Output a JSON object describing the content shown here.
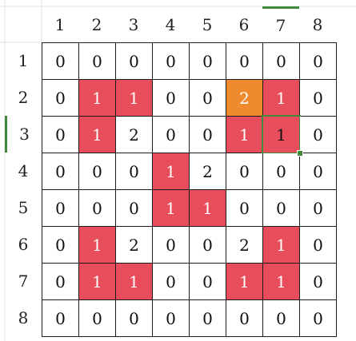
{
  "column_headers": [
    "1",
    "2",
    "3",
    "4",
    "5",
    "6",
    "7",
    "8"
  ],
  "row_headers": [
    "1",
    "2",
    "3",
    "4",
    "5",
    "6",
    "7",
    "8"
  ],
  "active_column_index": 6,
  "active_row_index": 2,
  "colors": {
    "red": "#e84d5b",
    "orange": "#ef8a2e",
    "selection": "#3f8a3a"
  },
  "cells": [
    [
      {
        "v": "0"
      },
      {
        "v": "0"
      },
      {
        "v": "0"
      },
      {
        "v": "0"
      },
      {
        "v": "0"
      },
      {
        "v": "0"
      },
      {
        "v": "0"
      },
      {
        "v": "0"
      }
    ],
    [
      {
        "v": "0"
      },
      {
        "v": "1",
        "fill": "red"
      },
      {
        "v": "1",
        "fill": "red"
      },
      {
        "v": "0"
      },
      {
        "v": "0"
      },
      {
        "v": "2",
        "fill": "orange"
      },
      {
        "v": "1",
        "fill": "red"
      },
      {
        "v": "0"
      }
    ],
    [
      {
        "v": "0"
      },
      {
        "v": "1",
        "fill": "red"
      },
      {
        "v": "2"
      },
      {
        "v": "0"
      },
      {
        "v": "0"
      },
      {
        "v": "1",
        "fill": "red"
      },
      {
        "v": "1",
        "fill": "red",
        "selected": true
      },
      {
        "v": "0"
      }
    ],
    [
      {
        "v": "0"
      },
      {
        "v": "0"
      },
      {
        "v": "0"
      },
      {
        "v": "1",
        "fill": "red"
      },
      {
        "v": "2"
      },
      {
        "v": "0"
      },
      {
        "v": "0"
      },
      {
        "v": "0"
      }
    ],
    [
      {
        "v": "0"
      },
      {
        "v": "0"
      },
      {
        "v": "0"
      },
      {
        "v": "1",
        "fill": "red"
      },
      {
        "v": "1",
        "fill": "red"
      },
      {
        "v": "0"
      },
      {
        "v": "0"
      },
      {
        "v": "0"
      }
    ],
    [
      {
        "v": "0"
      },
      {
        "v": "1",
        "fill": "red"
      },
      {
        "v": "2"
      },
      {
        "v": "0"
      },
      {
        "v": "0"
      },
      {
        "v": "2"
      },
      {
        "v": "1",
        "fill": "red"
      },
      {
        "v": "0"
      }
    ],
    [
      {
        "v": "0"
      },
      {
        "v": "1",
        "fill": "red"
      },
      {
        "v": "1",
        "fill": "red"
      },
      {
        "v": "0"
      },
      {
        "v": "0"
      },
      {
        "v": "1",
        "fill": "red"
      },
      {
        "v": "1",
        "fill": "red"
      },
      {
        "v": "0"
      }
    ],
    [
      {
        "v": "0"
      },
      {
        "v": "0"
      },
      {
        "v": "0"
      },
      {
        "v": "0"
      },
      {
        "v": "0"
      },
      {
        "v": "0"
      },
      {
        "v": "0"
      },
      {
        "v": "0"
      }
    ]
  ]
}
